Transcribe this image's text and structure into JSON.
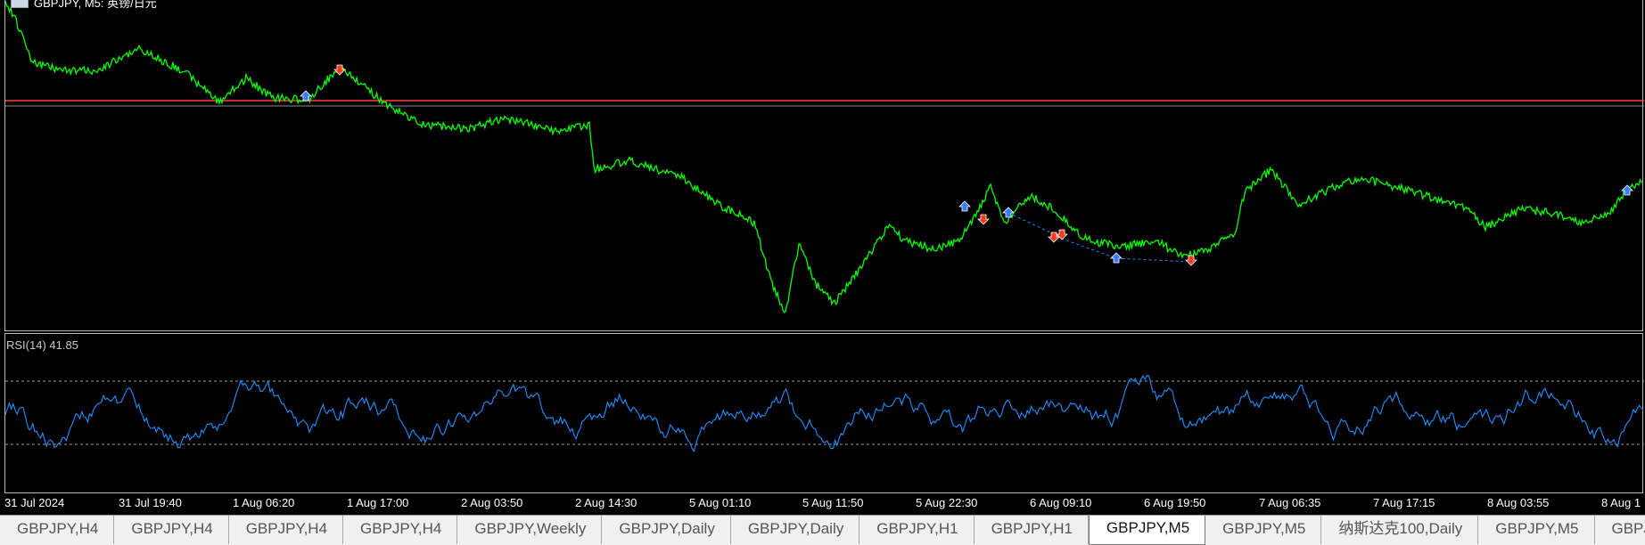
{
  "chart": {
    "title": "GBPJPY, M5: 英镑/日元",
    "rsi_label": "RSI(14) 41.85"
  },
  "colors": {
    "background": "#000000",
    "price_line": "#00ff00",
    "rsi_line": "#1e90ff",
    "horizontal_line": "#ff4040",
    "buy_marker": "#3a7bff",
    "sell_marker": "#ff3b1f",
    "grid_border": "#b8b8b8"
  },
  "time_axis": [
    "31 Jul 2024",
    "31 Jul 19:40",
    "1 Aug 06:20",
    "1 Aug 17:00",
    "2 Aug 03:50",
    "2 Aug 14:30",
    "5 Aug 01:10",
    "5 Aug 11:50",
    "5 Aug 22:30",
    "6 Aug 09:10",
    "6 Aug 19:50",
    "7 Aug 06:35",
    "7 Aug 17:15",
    "8 Aug 03:55",
    "8 Aug 1"
  ],
  "tabs": [
    {
      "label": "GBPJPY,H4",
      "active": false
    },
    {
      "label": "GBPJPY,H4",
      "active": false
    },
    {
      "label": "GBPJPY,H4",
      "active": false
    },
    {
      "label": "GBPJPY,H4",
      "active": false
    },
    {
      "label": "GBPJPY,Weekly",
      "active": false
    },
    {
      "label": "GBPJPY,Daily",
      "active": false
    },
    {
      "label": "GBPJPY,Daily",
      "active": false
    },
    {
      "label": "GBPJPY,H1",
      "active": false
    },
    {
      "label": "GBPJPY,H1",
      "active": false
    },
    {
      "label": "GBPJPY,M5",
      "active": true
    },
    {
      "label": "GBPJPY,M5",
      "active": false
    },
    {
      "label": "纳斯达克100,Daily",
      "active": false
    },
    {
      "label": "GBPJPY,M5",
      "active": false
    },
    {
      "label": "GBPJI",
      "active": false
    }
  ]
}
